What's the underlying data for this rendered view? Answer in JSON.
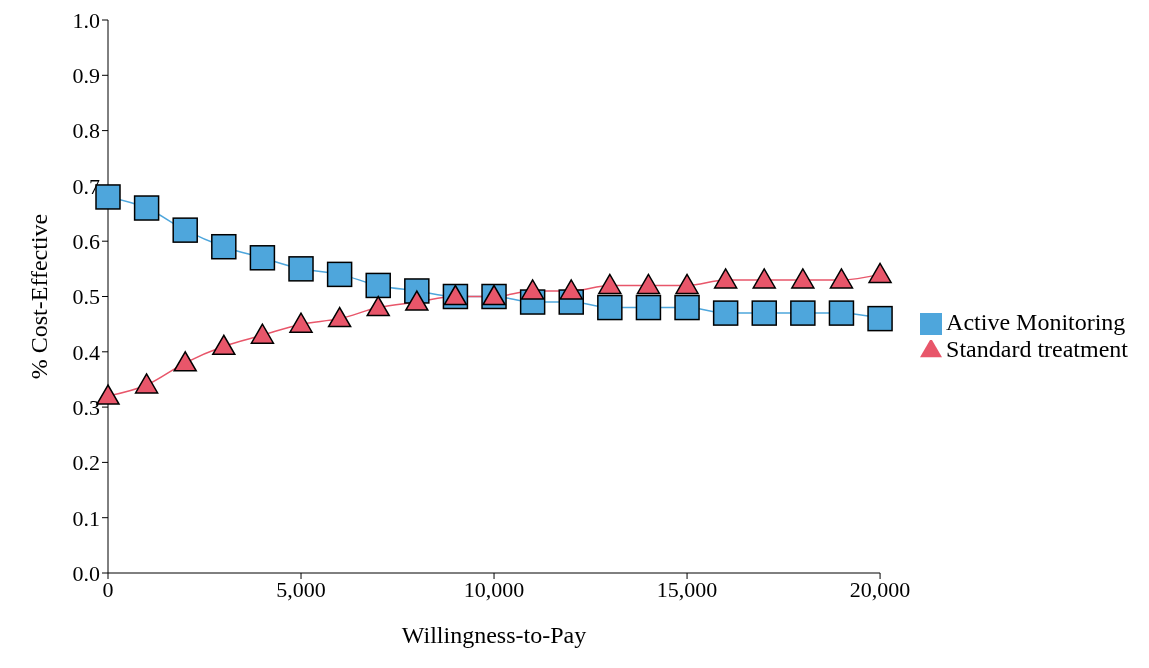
{
  "chart_data": {
    "type": "line",
    "xlabel": "Willingness-to-Pay",
    "ylabel": "% Cost-Effective",
    "x": [
      0,
      1000,
      2000,
      3000,
      4000,
      5000,
      6000,
      7000,
      8000,
      9000,
      10000,
      11000,
      12000,
      13000,
      14000,
      15000,
      16000,
      17000,
      18000,
      19000,
      20000
    ],
    "series": [
      {
        "name": "Active Monitoring",
        "color": "#4ea6dc",
        "marker": "square",
        "values": [
          0.68,
          0.66,
          0.62,
          0.59,
          0.57,
          0.55,
          0.54,
          0.52,
          0.51,
          0.5,
          0.5,
          0.49,
          0.49,
          0.48,
          0.48,
          0.48,
          0.47,
          0.47,
          0.47,
          0.47,
          0.46
        ]
      },
      {
        "name": "Standard treatment",
        "color": "#e8566a",
        "marker": "triangle",
        "values": [
          0.32,
          0.34,
          0.38,
          0.41,
          0.43,
          0.45,
          0.46,
          0.48,
          0.49,
          0.5,
          0.5,
          0.51,
          0.51,
          0.52,
          0.52,
          0.52,
          0.53,
          0.53,
          0.53,
          0.53,
          0.54
        ]
      }
    ],
    "xlim": [
      0,
      20000
    ],
    "xticks": [
      {
        "value": 0,
        "label": "0"
      },
      {
        "value": 5000,
        "label": "5,000"
      },
      {
        "value": 10000,
        "label": "10,000"
      },
      {
        "value": 15000,
        "label": "15,000"
      },
      {
        "value": 20000,
        "label": "20,000"
      }
    ],
    "ylim": [
      0,
      1
    ],
    "yticks": [
      {
        "value": 0,
        "label": "0.0"
      },
      {
        "value": 0.1,
        "label": "0.1"
      },
      {
        "value": 0.2,
        "label": "0.2"
      },
      {
        "value": 0.3,
        "label": "0.3"
      },
      {
        "value": 0.4,
        "label": "0.4"
      },
      {
        "value": 0.5,
        "label": "0.5"
      },
      {
        "value": 0.6,
        "label": "0.6"
      },
      {
        "value": 0.7,
        "label": "0.7"
      },
      {
        "value": 0.8,
        "label": "0.8"
      },
      {
        "value": 0.9,
        "label": "0.9"
      },
      {
        "value": 1,
        "label": "1.0"
      }
    ],
    "legend": "right",
    "grid": false
  }
}
